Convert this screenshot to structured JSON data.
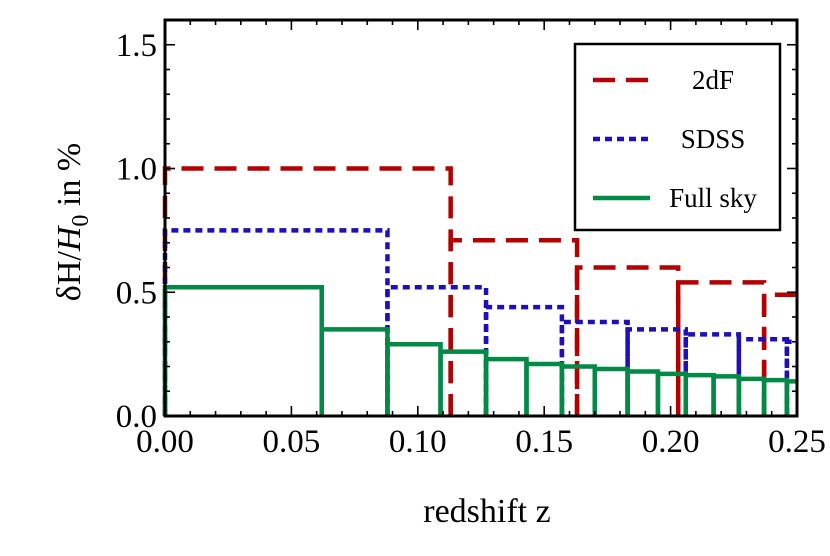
{
  "chart_data": {
    "type": "line",
    "title": "",
    "xlabel": "redshift z",
    "ylabel_parts": [
      "δH/",
      "H",
      "0",
      " in %"
    ],
    "xlim": [
      0,
      0.25
    ],
    "ylim": [
      0,
      1.6
    ],
    "x_ticks": [
      0.0,
      0.05,
      0.1,
      0.15,
      0.2,
      0.25
    ],
    "x_tick_labels": [
      "0.00",
      "0.05",
      "0.10",
      "0.15",
      "0.20",
      "0.25"
    ],
    "y_ticks": [
      0.0,
      0.5,
      1.0,
      1.5
    ],
    "y_tick_labels": [
      "0.0",
      "0.5",
      "1.0",
      "1.5"
    ],
    "legend_position": "top-right",
    "series": [
      {
        "name": "2dF",
        "color": "#b30000",
        "dash": "dashed",
        "bin_edges": [
          0.0,
          0.113,
          0.163,
          0.203,
          0.237,
          0.25
        ],
        "values": [
          1.0,
          0.71,
          0.6,
          0.54,
          0.49
        ]
      },
      {
        "name": "SDSS",
        "color": "#1f0fb8",
        "dash": "dotted",
        "bin_edges": [
          0.0,
          0.088,
          0.127,
          0.157,
          0.183,
          0.206,
          0.227,
          0.246,
          0.25
        ],
        "values": [
          0.75,
          0.52,
          0.44,
          0.38,
          0.35,
          0.33,
          0.31,
          0.3
        ]
      },
      {
        "name": "Full sky",
        "color": "#008a45",
        "dash": "solid",
        "bin_edges": [
          0.0,
          0.062,
          0.088,
          0.109,
          0.127,
          0.143,
          0.157,
          0.17,
          0.183,
          0.195,
          0.206,
          0.217,
          0.227,
          0.237,
          0.246,
          0.25
        ],
        "values": [
          0.52,
          0.35,
          0.29,
          0.26,
          0.23,
          0.21,
          0.2,
          0.19,
          0.18,
          0.17,
          0.165,
          0.16,
          0.15,
          0.145,
          0.14
        ]
      }
    ]
  }
}
